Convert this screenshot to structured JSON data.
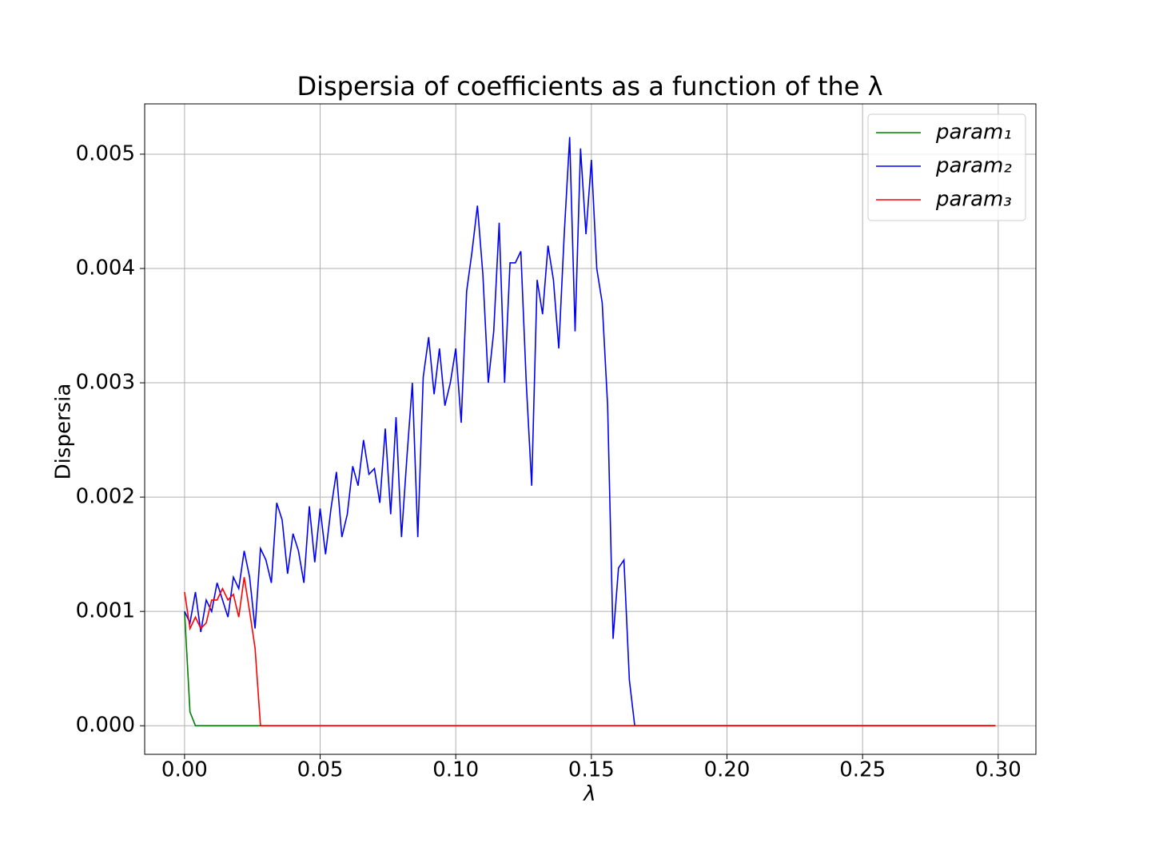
{
  "chart_data": {
    "type": "line",
    "title": "Dispersia of coefficients as a function of the λ",
    "xlabel": "λ",
    "ylabel": "Dispersia",
    "x": [
      0,
      0.002,
      0.004,
      0.006,
      0.008,
      0.01,
      0.012,
      0.014,
      0.016,
      0.018,
      0.02,
      0.022,
      0.024,
      0.026,
      0.028,
      0.03,
      0.032,
      0.034,
      0.036,
      0.038,
      0.04,
      0.042,
      0.044,
      0.046,
      0.048,
      0.05,
      0.052,
      0.054,
      0.056,
      0.058,
      0.06,
      0.062,
      0.064,
      0.066,
      0.068,
      0.07,
      0.072,
      0.074,
      0.076,
      0.078,
      0.08,
      0.082,
      0.084,
      0.086,
      0.088,
      0.09,
      0.092,
      0.094,
      0.096,
      0.098,
      0.1,
      0.102,
      0.104,
      0.106,
      0.108,
      0.11,
      0.112,
      0.114,
      0.116,
      0.118,
      0.12,
      0.122,
      0.124,
      0.126,
      0.128,
      0.13,
      0.132,
      0.134,
      0.136,
      0.138,
      0.14,
      0.142,
      0.144,
      0.146,
      0.148,
      0.15,
      0.152,
      0.154,
      0.156,
      0.158,
      0.16,
      0.162,
      0.164,
      0.166,
      0.168,
      0.299
    ],
    "series": [
      {
        "name": "param₁",
        "color": "#008000",
        "values": [
          0.001,
          0.00012,
          0,
          0,
          0,
          0,
          0,
          0,
          0,
          0,
          0,
          0,
          0,
          0,
          0,
          0,
          0,
          0,
          0,
          0,
          0,
          0,
          0,
          0,
          0,
          0,
          0,
          0,
          0,
          0,
          0,
          0,
          0,
          0,
          0,
          0,
          0,
          0,
          0,
          0,
          0,
          0,
          0,
          0,
          0,
          0,
          0,
          0,
          0,
          0,
          0,
          0,
          0,
          0,
          0,
          0,
          0,
          0,
          0,
          0,
          0,
          0,
          0,
          0,
          0,
          0,
          0,
          0,
          0,
          0,
          0,
          0,
          0,
          0,
          0,
          0,
          0,
          0,
          0,
          0,
          0,
          0,
          0,
          0,
          0,
          0
        ]
      },
      {
        "name": "param₂",
        "color": "#0000ff",
        "values": [
          0.001,
          0.0009,
          0.00117,
          0.00082,
          0.0011,
          0.001,
          0.00125,
          0.0011,
          0.00095,
          0.0013,
          0.0012,
          0.00153,
          0.0013,
          0.00085,
          0.00155,
          0.00145,
          0.00125,
          0.00195,
          0.0018,
          0.00133,
          0.00168,
          0.00153,
          0.00125,
          0.00192,
          0.00143,
          0.0019,
          0.0015,
          0.0019,
          0.00222,
          0.00165,
          0.00185,
          0.00227,
          0.0021,
          0.0025,
          0.0022,
          0.00225,
          0.00195,
          0.0026,
          0.00185,
          0.0027,
          0.00165,
          0.00235,
          0.003,
          0.00165,
          0.00305,
          0.0034,
          0.0029,
          0.0033,
          0.0028,
          0.003,
          0.0033,
          0.00265,
          0.0038,
          0.00415,
          0.00455,
          0.00395,
          0.003,
          0.00345,
          0.0044,
          0.003,
          0.00405,
          0.00405,
          0.00415,
          0.003,
          0.0021,
          0.0039,
          0.0036,
          0.0042,
          0.0039,
          0.0033,
          0.0043,
          0.00515,
          0.00345,
          0.00505,
          0.0043,
          0.00495,
          0.004,
          0.0037,
          0.0028,
          0.00076,
          0.00138,
          0.00145,
          0.0004,
          0,
          0,
          0
        ]
      },
      {
        "name": "param₃",
        "color": "#ff0000",
        "values": [
          0.00117,
          0.00085,
          0.00095,
          0.00085,
          0.0009,
          0.0011,
          0.0011,
          0.0012,
          0.0011,
          0.00115,
          0.00095,
          0.0013,
          0.001,
          0.00068,
          0,
          0,
          0,
          0,
          0,
          0,
          0,
          0,
          0,
          0,
          0,
          0,
          0,
          0,
          0,
          0,
          0,
          0,
          0,
          0,
          0,
          0,
          0,
          0,
          0,
          0,
          0,
          0,
          0,
          0,
          0,
          0,
          0,
          0,
          0,
          0,
          0,
          0,
          0,
          0,
          0,
          0,
          0,
          0,
          0,
          0,
          0,
          0,
          0,
          0,
          0,
          0,
          0,
          0,
          0,
          0,
          0,
          0,
          0,
          0,
          0,
          0,
          0,
          0,
          0,
          0,
          0,
          0,
          0,
          0,
          0,
          0
        ]
      }
    ],
    "xlim": [
      -0.0147,
      0.3139
    ],
    "ylim": [
      -0.00025,
      0.00544
    ],
    "xticks": [
      {
        "value": 0,
        "label": "0.00"
      },
      {
        "value": 0.05,
        "label": "0.05"
      },
      {
        "value": 0.1,
        "label": "0.10"
      },
      {
        "value": 0.15,
        "label": "0.15"
      },
      {
        "value": 0.2,
        "label": "0.20"
      },
      {
        "value": 0.25,
        "label": "0.25"
      },
      {
        "value": 0.3,
        "label": "0.30"
      }
    ],
    "yticks": [
      {
        "value": 0,
        "label": "0.000"
      },
      {
        "value": 0.001,
        "label": "0.001"
      },
      {
        "value": 0.002,
        "label": "0.002"
      },
      {
        "value": 0.003,
        "label": "0.003"
      },
      {
        "value": 0.004,
        "label": "0.004"
      },
      {
        "value": 0.005,
        "label": "0.005"
      }
    ],
    "grid": true,
    "legend": "upper-right"
  }
}
